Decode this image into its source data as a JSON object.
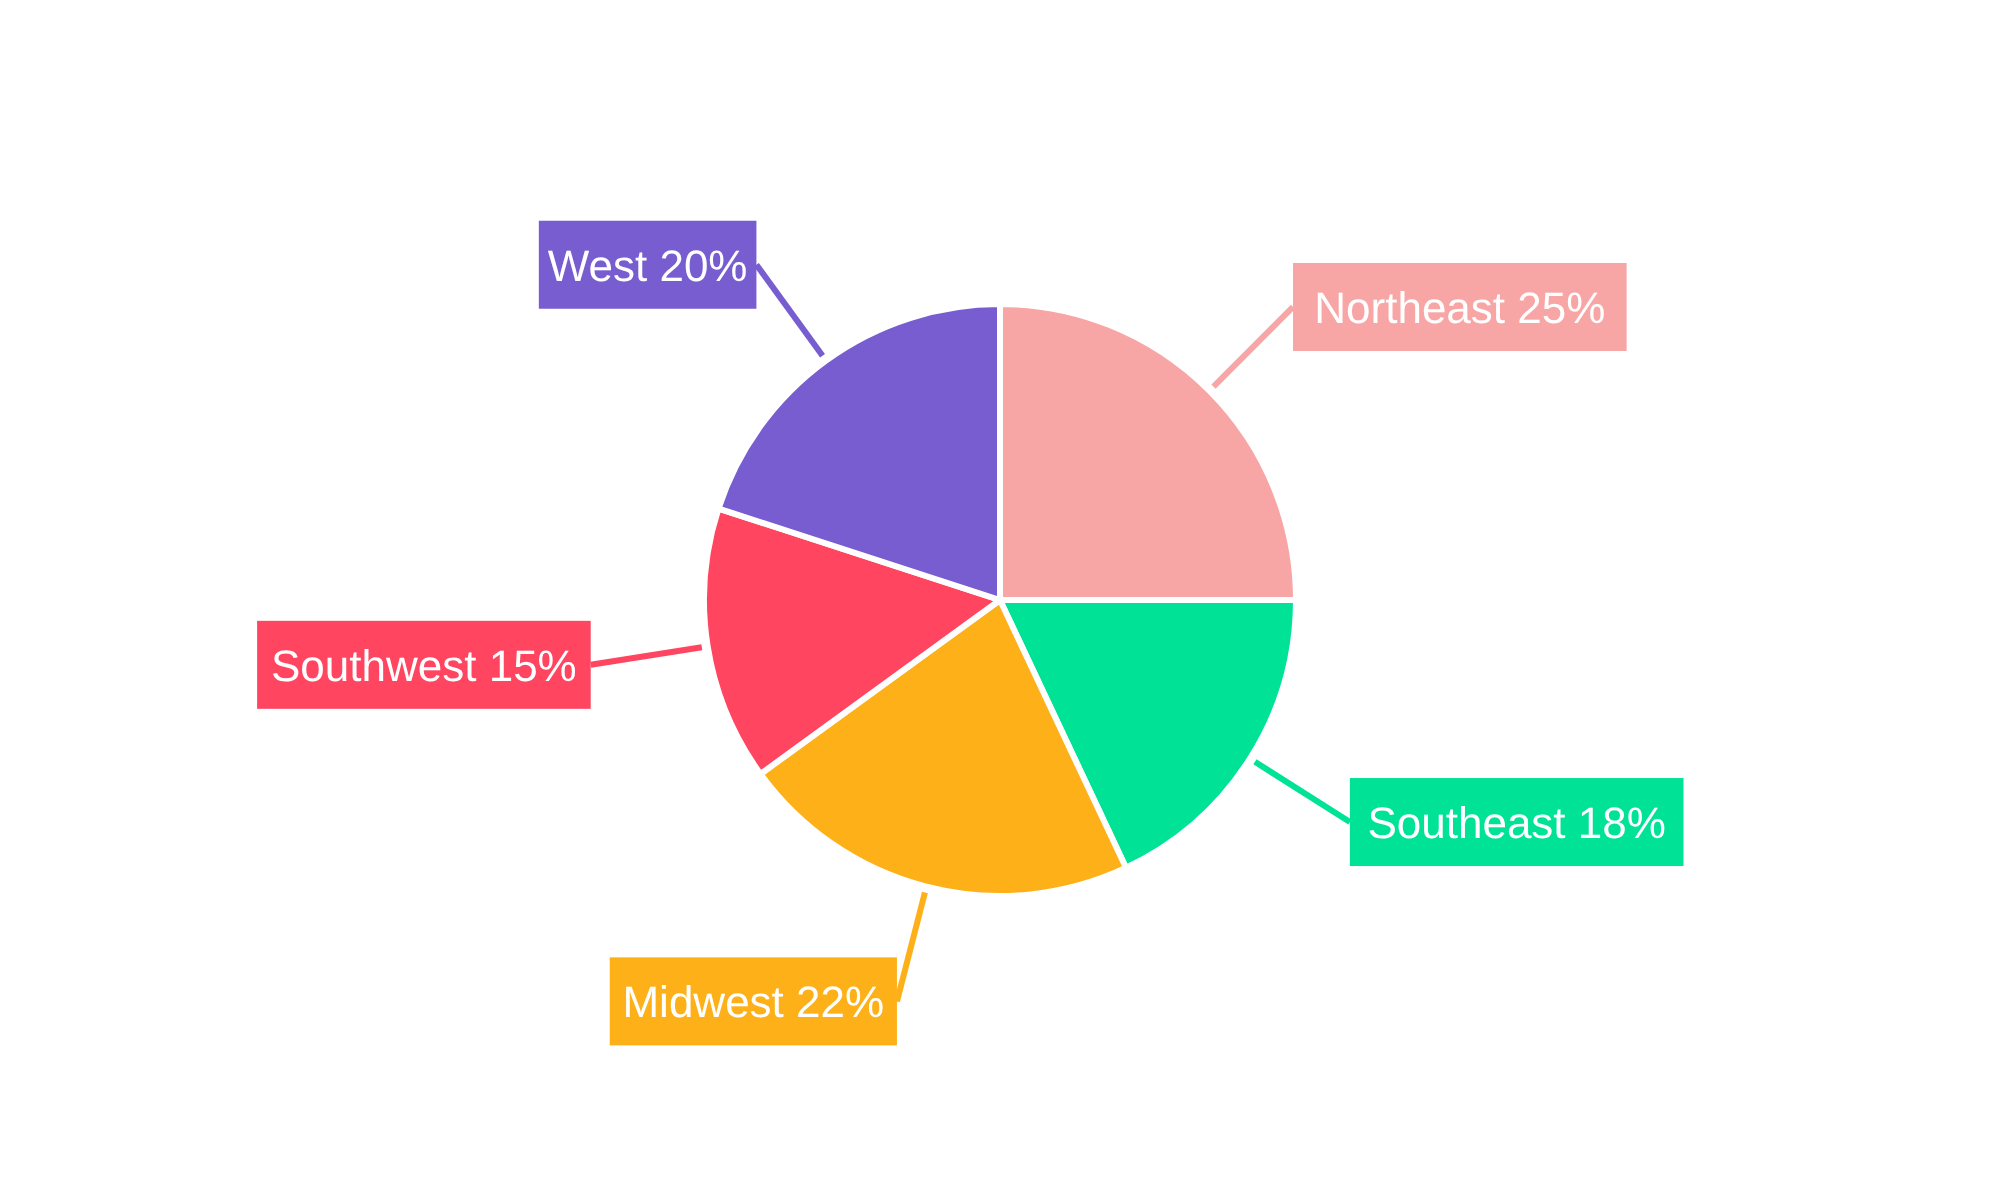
{
  "chart_data": {
    "type": "pie",
    "categories": [
      "Northeast",
      "Southeast",
      "Midwest",
      "Southwest",
      "West"
    ],
    "values": [
      25,
      18,
      22,
      15,
      20
    ],
    "value_labels": [
      "25%",
      "18%",
      "22%",
      "15%",
      "20%"
    ],
    "colors": [
      "#f8a5a5",
      "#00e396",
      "#feb019",
      "#ff4560",
      "#775dd0"
    ],
    "legend": false
  }
}
